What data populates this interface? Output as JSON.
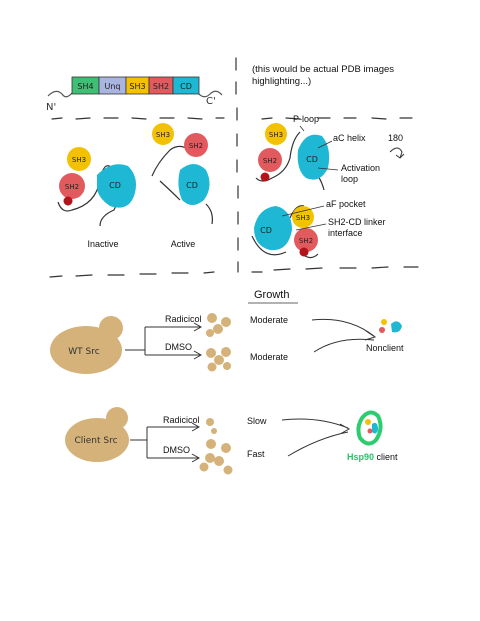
{
  "domain_bar": {
    "n_label": "N'",
    "c_label": "C'",
    "segments": [
      {
        "label": "SH4",
        "color": "#3fbf74"
      },
      {
        "label": "Unq",
        "color": "#aab4e0"
      },
      {
        "label": "SH3",
        "color": "#f2c200"
      },
      {
        "label": "SH2",
        "color": "#e15a5e"
      },
      {
        "label": "CD",
        "color": "#1fb8d4"
      }
    ]
  },
  "pdb_note": {
    "line1": "(this would be actual PDB images",
    "line2": "highlighting...)"
  },
  "states": {
    "inactive": {
      "caption": "Inactive",
      "sh3": "SH3",
      "sh2": "SH2",
      "cd": "CD"
    },
    "active": {
      "caption": "Active",
      "sh3": "SH3",
      "sh2": "SH2",
      "cd": "CD"
    }
  },
  "structure_top": {
    "sh3": "SH3",
    "sh2": "SH2",
    "cd": "CD",
    "p_loop": "P-loop",
    "ac_helix": "aC helix",
    "activation_loop_1": "Activation",
    "activation_loop_2": "loop",
    "rotation": "180"
  },
  "structure_bottom": {
    "cd": "CD",
    "sh3": "SH3",
    "sh2": "SH2",
    "af_pocket": "aF pocket",
    "linker_1": "SH2-CD linker",
    "linker_2": "interface"
  },
  "growth": {
    "header": "Growth",
    "wt": {
      "cell_label": "WT Src",
      "radicicol": "Radicicol",
      "dmso": "DMSO",
      "growth_radicicol": "Moderate",
      "growth_dmso": "Moderate",
      "outcome": "Nonclient"
    },
    "client": {
      "cell_label": "Client Src",
      "radicicol": "Radicicol",
      "dmso": "DMSO",
      "growth_radicicol": "Slow",
      "growth_dmso": "Fast",
      "outcome_accent": "Hsp90",
      "outcome_rest": " client"
    }
  },
  "colors": {
    "sh3": "#f2c200",
    "sh2": "#e15a5e",
    "cd": "#1fb8d4",
    "sh4": "#3fbf74",
    "unq": "#aab4e0",
    "yeast": "#d4b27a",
    "hsp90_green": "#2ecc71",
    "hsp90_accent": "#27c46b",
    "dot_red": "#b3141c"
  }
}
